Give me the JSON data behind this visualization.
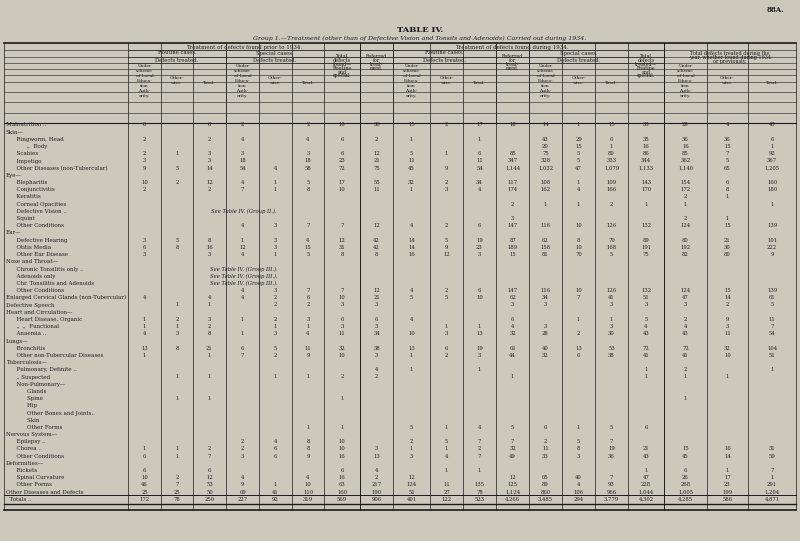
{
  "title": "TABLE IV.",
  "subtitle": "Group 1.—Treatment (other than of Defective Vision and Tonsils and Adenoids) Carried out during 1934.",
  "page_ref": "88A.",
  "background_color": "#cdc8bc",
  "text_color": "#1a1a1a"
}
